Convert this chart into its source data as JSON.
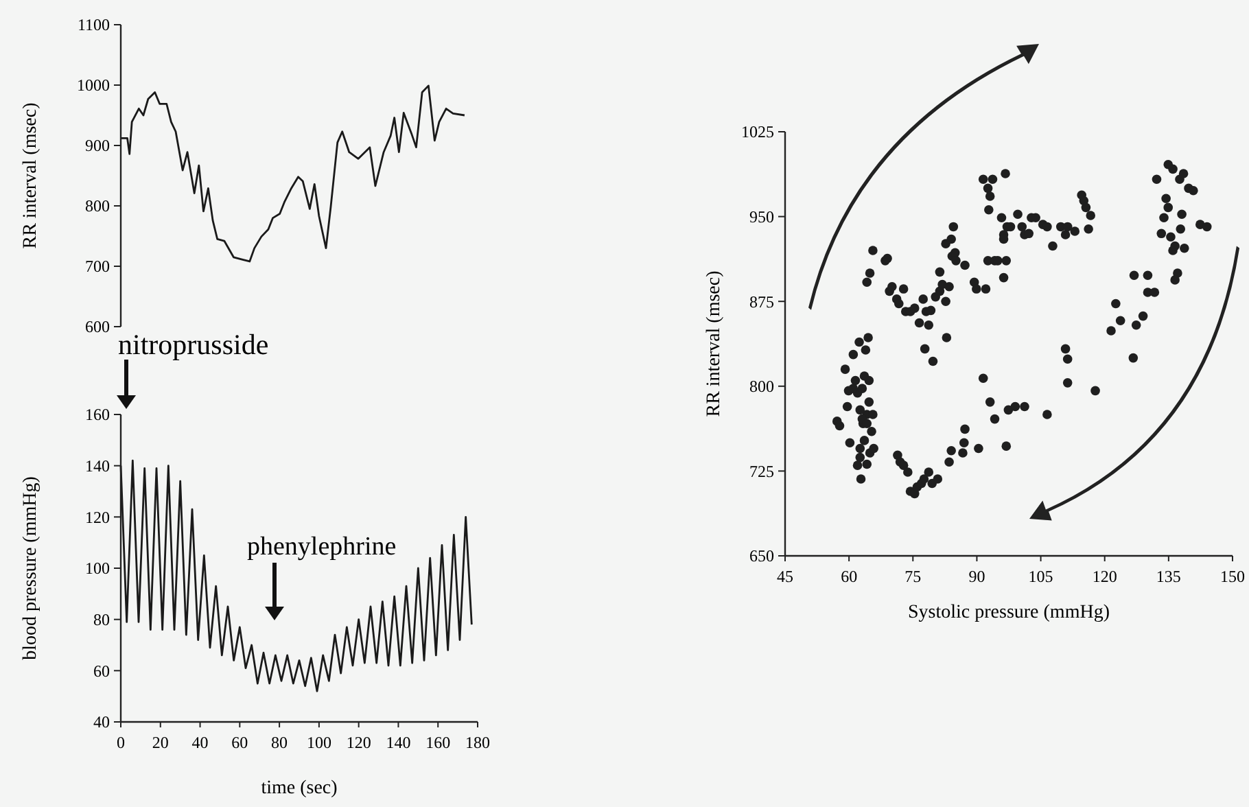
{
  "chart_data": [
    {
      "type": "line",
      "ylabel": "RR interval (msec)",
      "xlim": [
        0,
        180
      ],
      "ylim": [
        600,
        1100
      ],
      "yticks": [
        600,
        700,
        800,
        900,
        1000,
        1100
      ],
      "tick_labels": "y",
      "marker": "none",
      "line_style": "solid",
      "series": [
        {
          "color": "#1a1a1a",
          "x": [
            0,
            3.3,
            4.4,
            5.6,
            9.1,
            11.4,
            13.8,
            17.2,
            19.6,
            23.1,
            25.4,
            27.7,
            31.2,
            33.6,
            37.1,
            39.4,
            41.7,
            44.1,
            46.4,
            48.7,
            52.2,
            56.9,
            61.5,
            65,
            67.4,
            70.9,
            74.4,
            76.7,
            80.2,
            82.5,
            86,
            89.5,
            91.8,
            95.3,
            97.7,
            100,
            103.5,
            105.9,
            109.3,
            111.7,
            115.2,
            119.8,
            125.6,
            128.4,
            132.6,
            136.1,
            138,
            140.3,
            142.7,
            146.6,
            149,
            152,
            155.2,
            158.3,
            160.6,
            164.1,
            167.6,
            173.4
          ],
          "values": [
            912,
            912,
            886,
            939,
            961,
            950,
            977,
            988,
            969,
            969,
            939,
            923,
            859,
            889,
            821,
            867,
            791,
            829,
            776,
            745,
            742,
            715,
            711,
            708,
            730,
            749,
            761,
            780,
            787,
            806,
            829,
            848,
            841,
            795,
            836,
            783,
            730,
            798,
            905,
            923,
            889,
            878,
            897,
            833,
            889,
            916,
            946,
            889,
            954,
            920,
            897,
            988,
            999,
            908,
            939,
            961,
            953,
            950
          ]
        }
      ]
    },
    {
      "type": "line",
      "xlabel": "time (sec)",
      "ylabel": "blood pressure (mmHg)",
      "xlim": [
        0,
        180
      ],
      "xticks": [
        0,
        20,
        40,
        60,
        80,
        100,
        120,
        140,
        160,
        180
      ],
      "ylim": [
        40,
        160
      ],
      "yticks": [
        40,
        60,
        80,
        100,
        120,
        140,
        160
      ],
      "marker": "none",
      "line_style": "solid",
      "annotations": [
        "nitroprusside",
        "phenylephrine"
      ],
      "series": [
        {
          "color": "#1a1a1a",
          "x": [
            0,
            3,
            6,
            9,
            12,
            15,
            18,
            21,
            24,
            27,
            30,
            33,
            36,
            39,
            42,
            45,
            48,
            51,
            54,
            57,
            60,
            63,
            66,
            69,
            72,
            75,
            78,
            81,
            84,
            87,
            90,
            93,
            96,
            99,
            102,
            105,
            108,
            111,
            114,
            117,
            120,
            123,
            126,
            129,
            132,
            135,
            138,
            141,
            144,
            147,
            150,
            153,
            156,
            159,
            162,
            165,
            168,
            171,
            174,
            177
          ],
          "values": [
            140,
            79,
            142,
            79,
            139,
            76,
            139,
            76,
            140,
            76,
            134,
            74,
            123,
            72,
            105,
            69,
            93,
            66,
            85,
            64,
            77,
            61,
            70,
            55,
            67,
            55,
            66,
            56,
            66,
            55,
            64,
            54,
            65,
            52,
            66,
            56,
            74,
            59,
            77,
            62,
            80,
            63,
            85,
            63,
            87,
            62,
            89,
            62,
            93,
            63,
            100,
            64,
            104,
            66,
            109,
            68,
            113,
            72,
            120,
            78
          ]
        }
      ]
    },
    {
      "type": "scatter",
      "xlabel": "Systolic pressure (mmHg)",
      "ylabel": "RR interval (msec)",
      "xlim": [
        45,
        150
      ],
      "xticks": [
        45,
        60,
        75,
        90,
        105,
        120,
        135,
        150
      ],
      "ylim": [
        650,
        1025
      ],
      "yticks": [
        650,
        725,
        800,
        875,
        950,
        1025
      ],
      "marker": "circle",
      "series": [
        {
          "color": "#1f1f1f",
          "x": [
            57.2,
            57.8,
            59.1,
            59.6,
            60.2,
            61,
            61.5,
            62,
            62.4,
            62.6,
            62.8,
            63.1,
            63.3,
            63.6,
            63.9,
            64.2,
            64.5,
            64.7,
            64.9,
            65.3,
            65.6,
            65.8,
            62,
            62.6,
            63.6,
            64.2,
            63.1,
            64.7,
            61,
            59.9,
            62.6,
            64.2,
            64.2,
            65.6,
            64.9,
            68.5,
            69,
            69.5,
            70.1,
            71.2,
            71.7,
            72.8,
            73.3,
            74.4,
            75.4,
            76.5,
            77.4,
            78.1,
            78.7,
            77.8,
            79.7,
            79.2,
            80.3,
            81.3,
            81.3,
            82.7,
            81.9,
            82.7,
            83.5,
            82.9,
            84.2,
            84.9,
            84,
            84.5,
            85.1,
            87.2,
            71.4,
            72,
            72.8,
            73.8,
            74.4,
            75.4,
            76,
            77,
            77.6,
            78.7,
            79.5,
            80.8,
            83.5,
            84,
            86.7,
            87,
            87.2,
            90.4,
            91.5,
            93.1,
            94.2,
            96.9,
            97.4,
            99,
            101.2,
            106.5,
            89.4,
            89.9,
            91.5,
            92.6,
            93.1,
            92.8,
            93.7,
            92.1,
            92.6,
            94.2,
            94.9,
            96.3,
            96.7,
            95.8,
            96.3,
            96.9,
            96.3,
            97.1,
            97.9,
            99.6,
            100.6,
            101.2,
            102.8,
            102.2,
            103.8,
            105.5,
            106.5,
            107.8,
            109.7,
            110.8,
            111.3,
            113,
            114.6,
            115.1,
            115.6,
            116.2,
            116.7,
            110.8,
            111.3,
            111.3,
            117.8,
            121.5,
            122.6,
            123.7,
            126.9,
            126.7,
            127.4,
            129,
            130.1,
            130.1,
            131.7,
            132.2,
            133.3,
            133.9,
            134.4,
            134.9,
            134.9,
            136,
            135.5,
            136,
            136.5,
            137.1,
            137.6,
            137.8,
            138.1,
            138.5,
            138.7,
            139.7,
            140.8,
            142.4,
            144,
            136.5
          ],
          "values": [
            769,
            765,
            815,
            782,
            750,
            828,
            805,
            794,
            839,
            745,
            718,
            798,
            767,
            809,
            832,
            775,
            843,
            786,
            741,
            760,
            775,
            745,
            730,
            737,
            752,
            731,
            771,
            805,
            798,
            796,
            779,
            767,
            892,
            920,
            900,
            911,
            913,
            884,
            888,
            877,
            873,
            886,
            866,
            866,
            869,
            856,
            877,
            866,
            854,
            833,
            822,
            867,
            879,
            884,
            901,
            875,
            890,
            926,
            888,
            843,
            915,
            918,
            930,
            941,
            911,
            907,
            739,
            733,
            730,
            724,
            707,
            705,
            711,
            714,
            718,
            724,
            714,
            718,
            733,
            743,
            741,
            750,
            762,
            745,
            807,
            786,
            771,
            747,
            779,
            782,
            782,
            775,
            892,
            886,
            983,
            975,
            968,
            956,
            983,
            886,
            911,
            911,
            911,
            896,
            988,
            949,
            934,
            911,
            930,
            941,
            941,
            952,
            941,
            934,
            949,
            935,
            949,
            943,
            941,
            924,
            941,
            934,
            941,
            937,
            969,
            964,
            958,
            939,
            951,
            833,
            824,
            803,
            796,
            849,
            873,
            858,
            898,
            825,
            854,
            862,
            898,
            883,
            883,
            983,
            935,
            949,
            966,
            958,
            996,
            992,
            932,
            920,
            924,
            900,
            983,
            939,
            952,
            988,
            922,
            975,
            973,
            943,
            941,
            894
          ]
        }
      ]
    }
  ]
}
